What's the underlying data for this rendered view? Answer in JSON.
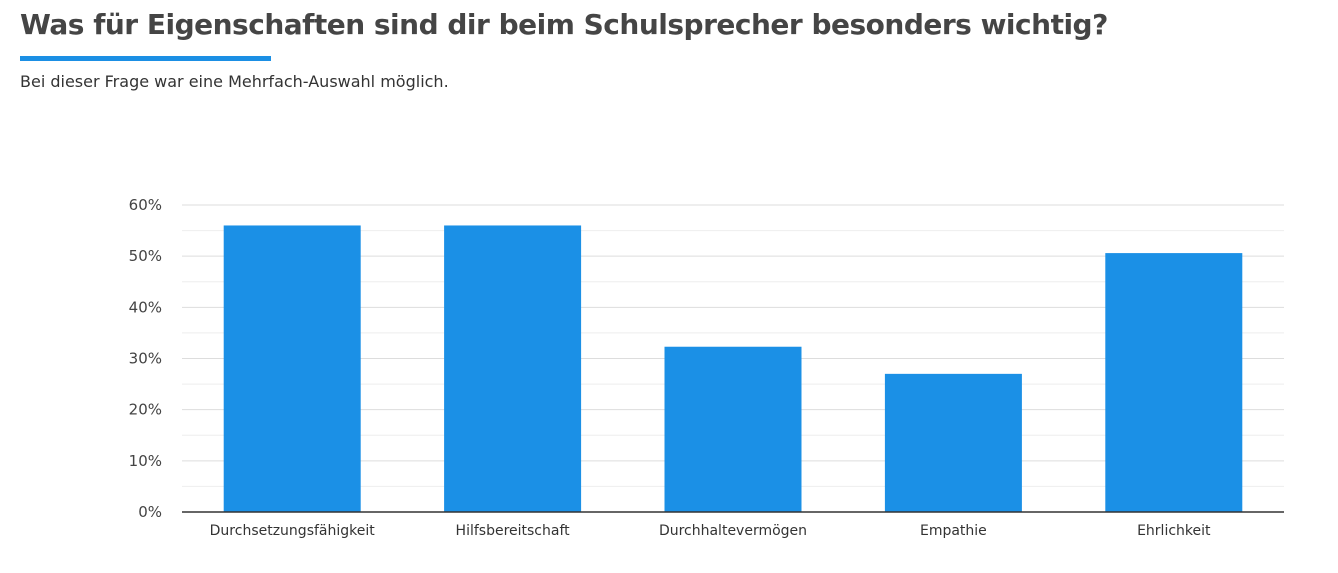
{
  "header": {
    "title": "Was für Eigenschaften sind dir beim Schulsprecher besonders wichtig?",
    "subtitle": "Bei dieser Frage war eine Mehrfach-Auswahl möglich."
  },
  "colors": {
    "accent": "#1b8fe4",
    "bar": "#1b90e6",
    "grid": "#dddddd",
    "axis": "#333333"
  },
  "chart_data": {
    "type": "bar",
    "categories": [
      "Durchsetzungsfähigkeit",
      "Hilfsbereitschaft",
      "Durchhaltevermögen",
      "Empathie",
      "Ehrlichkeit"
    ],
    "values": [
      56,
      56,
      32.3,
      27,
      50.6
    ],
    "ylim": [
      0,
      60
    ],
    "yticks": [
      0,
      10,
      20,
      30,
      40,
      50,
      60
    ],
    "ytick_labels": [
      "0%",
      "10%",
      "20%",
      "30%",
      "40%",
      "50%",
      "60%"
    ],
    "xlabel": "",
    "ylabel": "",
    "grid": true,
    "legend": "none"
  }
}
